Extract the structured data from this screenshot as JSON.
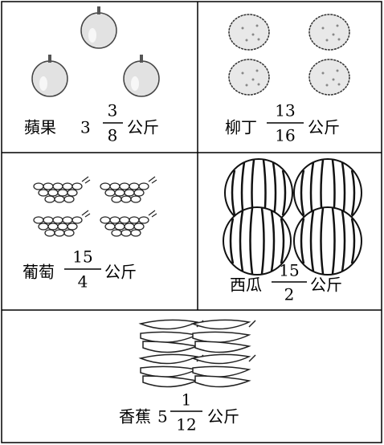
{
  "items": [
    {
      "name": "蘋果",
      "whole": "3",
      "numerator": "3",
      "denominator": "8",
      "unit": "公斤"
    },
    {
      "name": "柳丁",
      "numerator": "13",
      "denominator": "16",
      "unit": "公斤"
    },
    {
      "name": "葡萄",
      "numerator": "15",
      "denominator": "4",
      "unit": "公斤"
    },
    {
      "name": "西瓜",
      "numerator": "15",
      "denominator": "2",
      "unit": "公斤"
    },
    {
      "name": "香蕉",
      "whole": "5",
      "numerator": "1",
      "denominator": "12",
      "unit": "公斤"
    }
  ]
}
